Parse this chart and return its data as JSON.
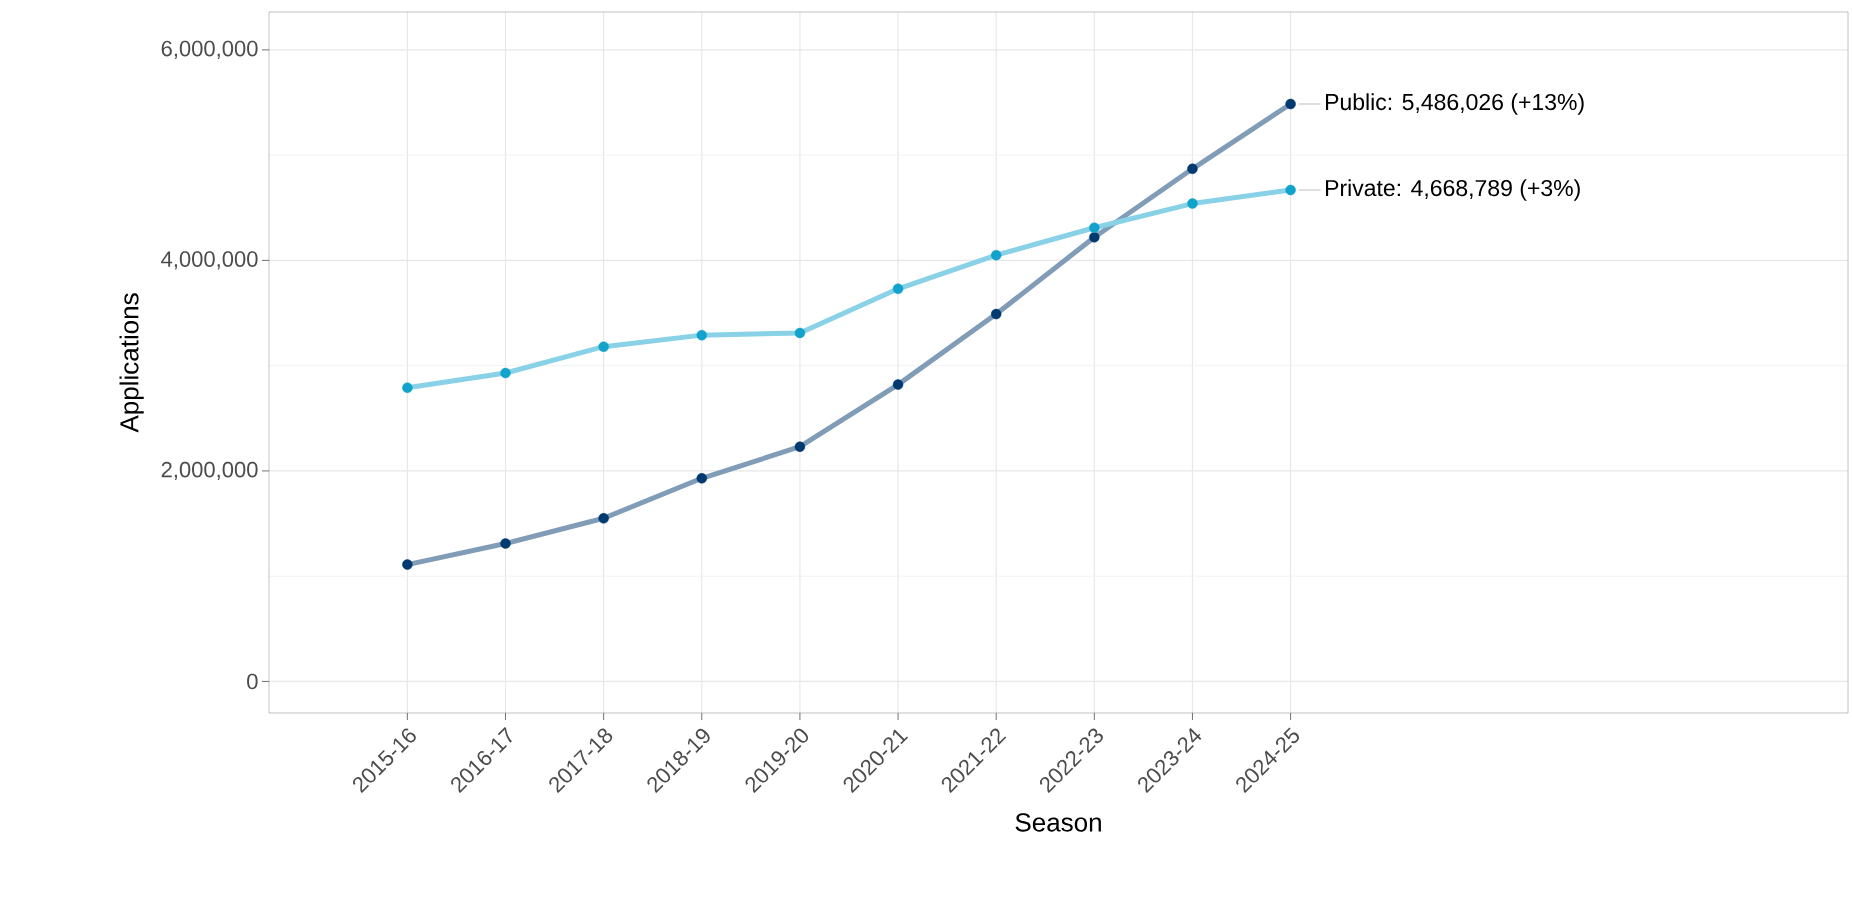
{
  "chart_data": {
    "type": "line",
    "xlabel": "Season",
    "ylabel": "Applications",
    "categories": [
      "2015-16",
      "2016-17",
      "2017-18",
      "2018-19",
      "2019-20",
      "2020-21",
      "2021-22",
      "2022-23",
      "2023-24",
      "2024-25"
    ],
    "series": [
      {
        "color": "#003a70",
        "values": [
          1110000,
          1310000,
          1550000,
          1930000,
          2230000,
          2820000,
          3490000,
          4220000,
          4870000,
          5486026
        ]
      },
      {
        "color": "#12a3cc",
        "values": [
          2790000,
          2930000,
          3180000,
          3290000,
          3310000,
          3730000,
          4050000,
          4310000,
          4540000,
          4668789
        ]
      }
    ],
    "ylim": [
      -300000,
      6360000
    ],
    "yticks": [
      {
        "value": 0,
        "label": "0"
      },
      {
        "value": 2000000,
        "label": "2,000,000"
      },
      {
        "value": 4000000,
        "label": "4,000,000"
      },
      {
        "value": 6000000,
        "label": "6,000,000"
      }
    ],
    "grid": true,
    "marker": "circle",
    "line_style": "solid",
    "annotations": [
      {
        "text": "Public: 5,486,026 (+13%)",
        "x": "2024-25",
        "y": 5486026
      },
      {
        "text": "Private: 4,668,789 (+3%)",
        "x": "2024-25",
        "y": 4668789
      }
    ]
  }
}
